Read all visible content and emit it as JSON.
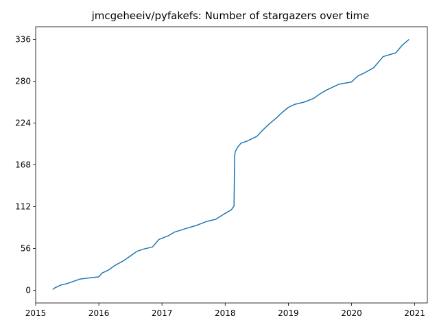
{
  "chart_data": {
    "type": "line",
    "title": "jmcgeheeiv/pyfakefs: Number of stargazers over time",
    "xlabel": "",
    "ylabel": "",
    "xlim": [
      2015.0,
      2021.2
    ],
    "ylim": [
      -17,
      353
    ],
    "x_ticks": [
      2015,
      2016,
      2017,
      2018,
      2019,
      2020,
      2021
    ],
    "x_tick_labels": [
      "2015",
      "2016",
      "2017",
      "2018",
      "2019",
      "2020",
      "2021"
    ],
    "y_ticks": [
      0,
      56,
      112,
      168,
      224,
      280,
      336
    ],
    "y_tick_labels": [
      "0",
      "56",
      "112",
      "168",
      "224",
      "280",
      "336"
    ],
    "grid": false,
    "legend": "none",
    "color": "#1f77b4",
    "series": [
      {
        "x": [
          2015.27,
          2015.3,
          2015.4,
          2015.5,
          2015.6,
          2015.7,
          2015.8,
          2016.0,
          2016.05,
          2016.15,
          2016.25,
          2016.4,
          2016.5,
          2016.6,
          2016.7,
          2016.85,
          2016.95,
          2017.1,
          2017.2,
          2017.35,
          2017.55,
          2017.7,
          2017.85,
          2018.0,
          2018.1,
          2018.14,
          2018.15,
          2018.16,
          2018.2,
          2018.25,
          2018.35,
          2018.5,
          2018.6,
          2018.7,
          2018.8,
          2018.9,
          2019.0,
          2019.1,
          2019.25,
          2019.4,
          2019.5,
          2019.6,
          2019.75,
          2019.8,
          2020.0,
          2020.1,
          2020.2,
          2020.35,
          2020.5,
          2020.7,
          2020.8,
          2020.91
        ],
        "y": [
          1,
          3,
          7,
          9,
          12,
          15,
          16,
          18,
          23,
          27,
          33,
          40,
          46,
          52,
          55,
          58,
          68,
          73,
          78,
          82,
          87,
          92,
          95,
          103,
          108,
          113,
          180,
          186,
          192,
          197,
          200,
          206,
          215,
          223,
          230,
          238,
          245,
          249,
          252,
          257,
          263,
          268,
          274,
          276,
          279,
          287,
          291,
          298,
          313,
          318,
          328,
          336
        ]
      }
    ]
  }
}
